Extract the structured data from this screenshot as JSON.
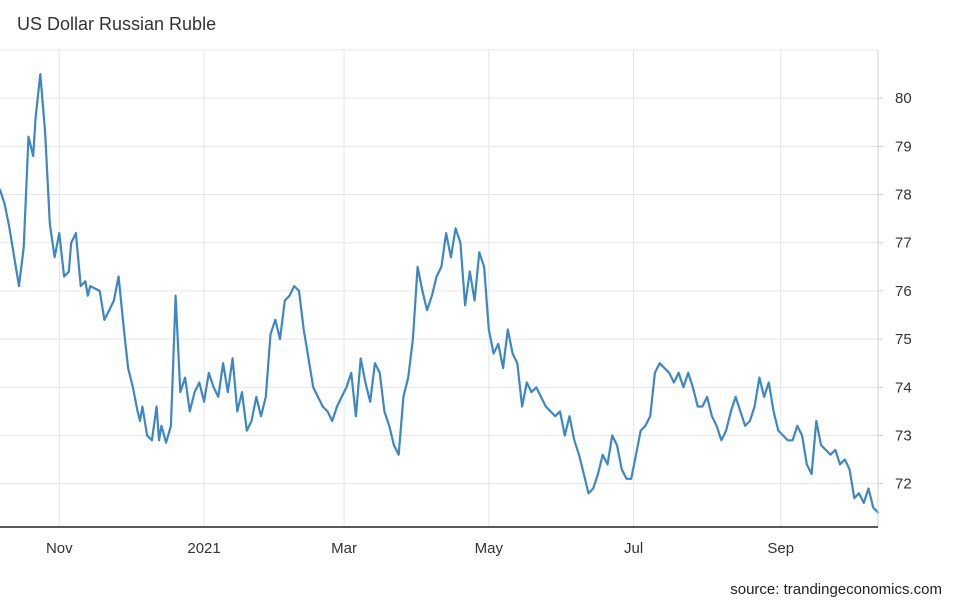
{
  "title": "US Dollar Russian Ruble",
  "source": "source: trandingeconomics.com",
  "chart_data": {
    "type": "line",
    "title": "US Dollar Russian Ruble",
    "xlabel": "",
    "ylabel": "",
    "line_color": "#3d87c3",
    "grid": true,
    "x_range": [
      "2020-10-07",
      "2021-10-12"
    ],
    "ylim": [
      71.1,
      81.0
    ],
    "y_ticks": [
      72,
      73,
      74,
      75,
      76,
      77,
      78,
      79,
      80
    ],
    "x_ticks": [
      {
        "date": "2020-11-01",
        "label": "Nov"
      },
      {
        "date": "2021-01-01",
        "label": "2021"
      },
      {
        "date": "2021-03-01",
        "label": "Mar"
      },
      {
        "date": "2021-05-01",
        "label": "May"
      },
      {
        "date": "2021-07-01",
        "label": "Jul"
      },
      {
        "date": "2021-09-01",
        "label": "Sep"
      }
    ],
    "series": [
      {
        "x": [
          "2020-10-07",
          "2020-10-09",
          "2020-10-11",
          "2020-10-13",
          "2020-10-15",
          "2020-10-17",
          "2020-10-19",
          "2020-10-21",
          "2020-10-22",
          "2020-10-24",
          "2020-10-26",
          "2020-10-28",
          "2020-10-30",
          "2020-11-01",
          "2020-11-03",
          "2020-11-05",
          "2020-11-06",
          "2020-11-07",
          "2020-11-08",
          "2020-11-10",
          "2020-11-12",
          "2020-11-13",
          "2020-11-14",
          "2020-11-16",
          "2020-11-18",
          "2020-11-20",
          "2020-11-21",
          "2020-11-22",
          "2020-11-24",
          "2020-11-26",
          "2020-11-28",
          "2020-11-30",
          "2020-12-02",
          "2020-12-04",
          "2020-12-05",
          "2020-12-06",
          "2020-12-08",
          "2020-12-10",
          "2020-12-12",
          "2020-12-13",
          "2020-12-14",
          "2020-12-16",
          "2020-12-18",
          "2020-12-19",
          "2020-12-20",
          "2020-12-22",
          "2020-12-24",
          "2020-12-26",
          "2020-12-28",
          "2020-12-30",
          "2021-01-01",
          "2021-01-03",
          "2021-01-05",
          "2021-01-07",
          "2021-01-09",
          "2021-01-11",
          "2021-01-13",
          "2021-01-15",
          "2021-01-17",
          "2021-01-19",
          "2021-01-21",
          "2021-01-23",
          "2021-01-25",
          "2021-01-27",
          "2021-01-29",
          "2021-01-31",
          "2021-02-02",
          "2021-02-04",
          "2021-02-06",
          "2021-02-08",
          "2021-02-10",
          "2021-02-12",
          "2021-02-14",
          "2021-02-16",
          "2021-02-18",
          "2021-02-20",
          "2021-02-22",
          "2021-02-24",
          "2021-02-26",
          "2021-02-28",
          "2021-03-02",
          "2021-03-04",
          "2021-03-06",
          "2021-03-08",
          "2021-03-10",
          "2021-03-12",
          "2021-03-14",
          "2021-03-16",
          "2021-03-18",
          "2021-03-20",
          "2021-03-22",
          "2021-03-24",
          "2021-03-26",
          "2021-03-28",
          "2021-03-30",
          "2021-04-01",
          "2021-04-03",
          "2021-04-05",
          "2021-04-07",
          "2021-04-09",
          "2021-04-11",
          "2021-04-13",
          "2021-04-15",
          "2021-04-17",
          "2021-04-19",
          "2021-04-21",
          "2021-04-23",
          "2021-04-25",
          "2021-04-27",
          "2021-04-29",
          "2021-05-01",
          "2021-05-03",
          "2021-05-05",
          "2021-05-07",
          "2021-05-09",
          "2021-05-11",
          "2021-05-13",
          "2021-05-15",
          "2021-05-17",
          "2021-05-19",
          "2021-05-21",
          "2021-05-23",
          "2021-05-25",
          "2021-05-27",
          "2021-05-29",
          "2021-05-31",
          "2021-06-02",
          "2021-06-04",
          "2021-06-06",
          "2021-06-08",
          "2021-06-10",
          "2021-06-12",
          "2021-06-14",
          "2021-06-16",
          "2021-06-18",
          "2021-06-20",
          "2021-06-22",
          "2021-06-24",
          "2021-06-26",
          "2021-06-28",
          "2021-06-30",
          "2021-07-02",
          "2021-07-04",
          "2021-07-06",
          "2021-07-08",
          "2021-07-10",
          "2021-07-12",
          "2021-07-14",
          "2021-07-16",
          "2021-07-18",
          "2021-07-20",
          "2021-07-22",
          "2021-07-24",
          "2021-07-26",
          "2021-07-28",
          "2021-07-30",
          "2021-08-01",
          "2021-08-03",
          "2021-08-05",
          "2021-08-07",
          "2021-08-09",
          "2021-08-11",
          "2021-08-13",
          "2021-08-15",
          "2021-08-17",
          "2021-08-19",
          "2021-08-21",
          "2021-08-23",
          "2021-08-25",
          "2021-08-27",
          "2021-08-29",
          "2021-08-31",
          "2021-09-02",
          "2021-09-04",
          "2021-09-06",
          "2021-09-08",
          "2021-09-10",
          "2021-09-12",
          "2021-09-14",
          "2021-09-16",
          "2021-09-18",
          "2021-09-20",
          "2021-09-22",
          "2021-09-24",
          "2021-09-26",
          "2021-09-28",
          "2021-09-30",
          "2021-10-02",
          "2021-10-04",
          "2021-10-06",
          "2021-10-08",
          "2021-10-10",
          "2021-10-12"
        ],
        "y": [
          78.1,
          77.8,
          77.3,
          76.7,
          76.1,
          76.9,
          79.2,
          78.8,
          79.6,
          80.5,
          79.3,
          77.4,
          76.7,
          77.2,
          76.3,
          76.4,
          77.0,
          77.1,
          77.2,
          76.1,
          76.2,
          75.9,
          76.1,
          76.05,
          76.0,
          75.4,
          75.5,
          75.6,
          75.8,
          76.3,
          75.3,
          74.4,
          74.0,
          73.5,
          73.3,
          73.6,
          73.0,
          72.9,
          73.6,
          72.9,
          73.2,
          72.85,
          73.2,
          74.5,
          75.9,
          73.9,
          74.2,
          73.5,
          73.9,
          74.1,
          73.7,
          74.3,
          74.0,
          73.8,
          74.5,
          73.9,
          74.6,
          73.5,
          73.9,
          73.1,
          73.3,
          73.8,
          73.4,
          73.8,
          75.1,
          75.4,
          75.0,
          75.8,
          75.9,
          76.1,
          76.0,
          75.2,
          74.6,
          74.0,
          73.8,
          73.6,
          73.5,
          73.3,
          73.6,
          73.8,
          74.0,
          74.3,
          73.4,
          74.6,
          74.1,
          73.7,
          74.5,
          74.3,
          73.5,
          73.2,
          72.8,
          72.6,
          73.8,
          74.2,
          75.0,
          76.5,
          76.0,
          75.6,
          75.9,
          76.3,
          76.5,
          77.2,
          76.7,
          77.3,
          77.0,
          75.7,
          76.4,
          75.8,
          76.8,
          76.5,
          75.2,
          74.7,
          74.9,
          74.4,
          75.2,
          74.7,
          74.5,
          73.6,
          74.1,
          73.9,
          74.0,
          73.8,
          73.6,
          73.5,
          73.4,
          73.5,
          73.0,
          73.4,
          72.9,
          72.6,
          72.2,
          71.8,
          71.9,
          72.2,
          72.6,
          72.4,
          73.0,
          72.8,
          72.3,
          72.1,
          72.1,
          72.6,
          73.1,
          73.2,
          73.4,
          74.3,
          74.5,
          74.4,
          74.3,
          74.1,
          74.3,
          74.0,
          74.3,
          74.0,
          73.6,
          73.6,
          73.8,
          73.4,
          73.2,
          72.9,
          73.1,
          73.5,
          73.8,
          73.5,
          73.2,
          73.3,
          73.6,
          74.2,
          73.8,
          74.1,
          73.5,
          73.1,
          73.0,
          72.9,
          72.9,
          73.2,
          73.0,
          72.4,
          72.2,
          73.3,
          72.8,
          72.7,
          72.6,
          72.7,
          72.4,
          72.5,
          72.3,
          71.7,
          71.8,
          71.6,
          71.9,
          71.5,
          71.4
        ]
      }
    ]
  }
}
